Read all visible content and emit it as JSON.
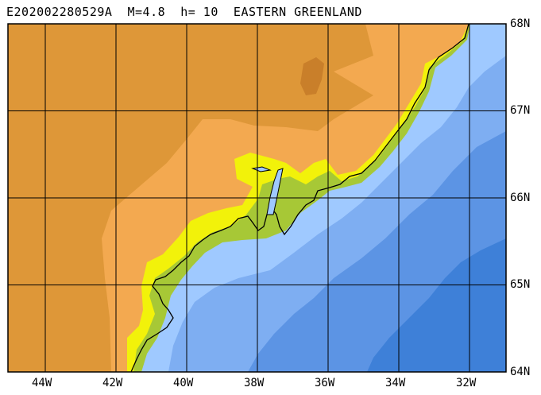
{
  "title": "E202002280529A  M=4.8  h= 10  EASTERN GREENLAND",
  "colors": {
    "land_high": "#DE9738",
    "land_mid": "#F3A950",
    "land_low_yellow": "#F2F20A",
    "land_green": "#A7C836",
    "coast_green": "#8CBA32",
    "ocean_shallow": "#9FC9FF",
    "ocean_mid": "#7EAEF2",
    "ocean_deep": "#5C94E4",
    "ocean_deepest": "#3E80D8",
    "grid": "#000000",
    "coastline": "#000000"
  },
  "map": {
    "lon_min": -45,
    "lon_max": -31.6,
    "lat_min": 64,
    "lat_max": 68,
    "lon_labels": [
      {
        "value": -44,
        "text": "44W"
      },
      {
        "value": -42,
        "text": "42W"
      },
      {
        "value": -40,
        "text": "40W"
      },
      {
        "value": -38,
        "text": "38W"
      },
      {
        "value": -36,
        "text": "36W"
      },
      {
        "value": -34,
        "text": "34W"
      },
      {
        "value": -32,
        "text": "32W"
      }
    ],
    "lat_labels": [
      {
        "value": 68,
        "text": "68N"
      },
      {
        "value": 67,
        "text": "67N"
      },
      {
        "value": 66,
        "text": "66N"
      },
      {
        "value": 65,
        "text": "65N"
      },
      {
        "value": 64,
        "text": "64N"
      }
    ]
  }
}
